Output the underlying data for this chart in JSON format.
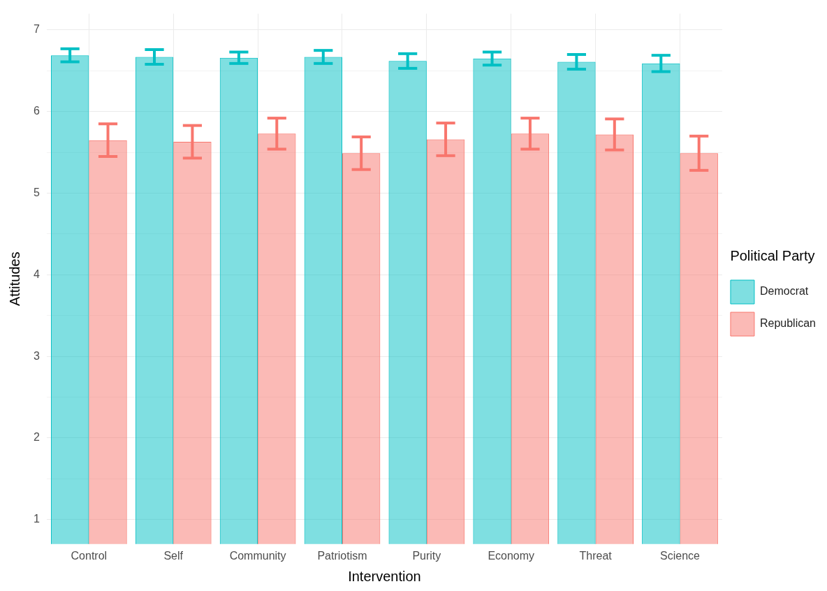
{
  "chart_data": {
    "type": "bar",
    "xlabel": "Intervention",
    "ylabel": "Attitudes",
    "legend_title": "Political Party",
    "legend": "right",
    "grid": true,
    "categories": [
      "Control",
      "Self",
      "Community",
      "Patriotism",
      "Purity",
      "Economy",
      "Threat",
      "Science"
    ],
    "ylim": [
      0.7,
      7.2
    ],
    "yticks": [
      1,
      {
        "value": 1.5,
        "label": null
      },
      2,
      {
        "value": 2.5,
        "label": null
      },
      3,
      {
        "value": 3.5,
        "label": null
      },
      4,
      {
        "value": 4.5,
        "label": null
      },
      5,
      {
        "value": 5.5,
        "label": null
      },
      6,
      {
        "value": 6.5,
        "label": null
      },
      7
    ],
    "series": [
      {
        "name": "Democrat",
        "color": "#00bfc4",
        "values": [
          6.69,
          6.67,
          6.66,
          6.67,
          6.62,
          6.65,
          6.61,
          6.59
        ],
        "errors": [
          0.08,
          0.09,
          0.07,
          0.08,
          0.09,
          0.08,
          0.09,
          0.1
        ]
      },
      {
        "name": "Republican",
        "color": "#f8766d",
        "values": [
          5.65,
          5.63,
          5.73,
          5.49,
          5.66,
          5.73,
          5.72,
          5.49
        ],
        "errors": [
          0.2,
          0.2,
          0.19,
          0.2,
          0.2,
          0.19,
          0.19,
          0.21
        ]
      }
    ]
  }
}
